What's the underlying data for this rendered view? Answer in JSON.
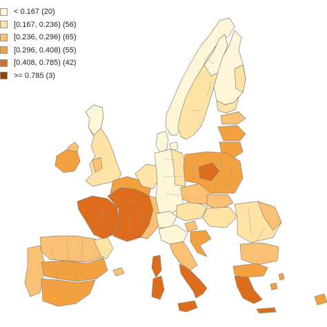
{
  "legend": {
    "items": [
      {
        "label": "< 0.167 (20)",
        "color": "#fdf6d8"
      },
      {
        "label": "[0.167, 0.236) (56)",
        "color": "#fde3a6"
      },
      {
        "label": "[0.236, 0.296) (65)",
        "color": "#fac174"
      },
      {
        "label": "[0.296, 0.408) (55)",
        "color": "#f3a140"
      },
      {
        "label": "[0.408, 0.785) (42)",
        "color": "#dd6d1c"
      },
      {
        "label": ">= 0.785 (3)",
        "color": "#9c3f06"
      }
    ]
  }
}
